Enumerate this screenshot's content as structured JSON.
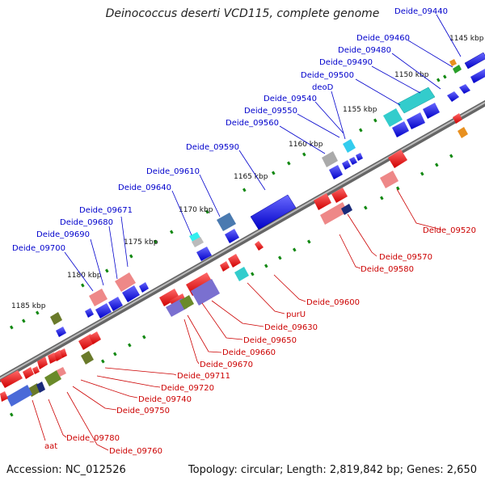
{
  "title": "Deinococcus deserti VCD115, complete genome",
  "footer": {
    "accession": "Accession: NC_012526",
    "summary": "Topology: circular; Length: 2,819,842 bp; Genes: 2,650"
  },
  "colors": {
    "forward": "#0000ee",
    "reverse": "#ee0000",
    "label_forward": "#0000cc",
    "label_reverse": "#cc0000",
    "backbone": "#888888",
    "ruler_dot": "#118811"
  },
  "ticks": [
    {
      "label": "1145 kbp"
    },
    {
      "label": "1150 kbp"
    },
    {
      "label": "1155 kbp"
    },
    {
      "label": "1160 kbp"
    },
    {
      "label": "1165 kbp"
    },
    {
      "label": "1170 kbp"
    },
    {
      "label": "1175 kbp"
    },
    {
      "label": "1180 kbp"
    },
    {
      "label": "1185 kbp"
    }
  ],
  "forward_labels": [
    "Deide_09440",
    "Deide_09460",
    "Deide_09480",
    "Deide_09490",
    "Deide_09500",
    "deoD",
    "Deide_09540",
    "Deide_09550",
    "Deide_09560",
    "Deide_09590",
    "Deide_09610",
    "Deide_09640",
    "Deide_09671",
    "Deide_09680",
    "Deide_09690",
    "Deide_09700"
  ],
  "reverse_labels": [
    "Deide_09520",
    "Deide_09570",
    "Deide_09580",
    "Deide_09600",
    "purU",
    "Deide_09630",
    "Deide_09650",
    "Deide_09660",
    "Deide_09670",
    "Deide_09711",
    "Deide_09720",
    "Deide_09740",
    "Deide_09750",
    "Deide_09760",
    "Deide_09780",
    "aat"
  ]
}
